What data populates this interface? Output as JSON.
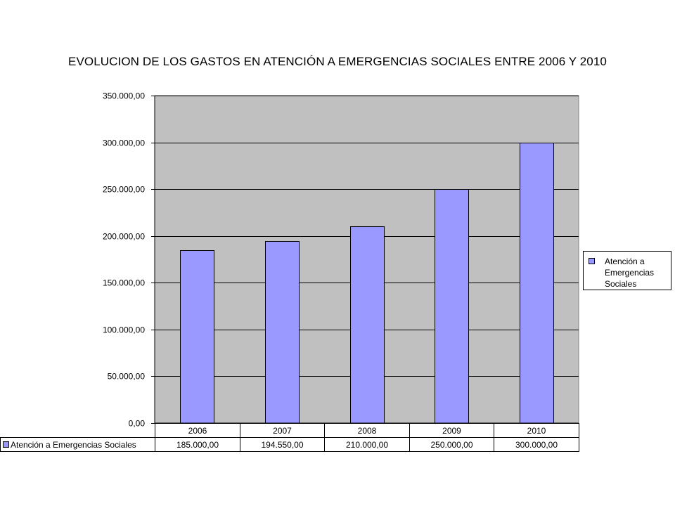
{
  "chart_data": {
    "type": "bar",
    "title": "EVOLUCION DE LOS GASTOS EN ATENCIÓN A EMERGENCIAS SOCIALES ENTRE 2006 Y 2010",
    "categories": [
      "2006",
      "2007",
      "2008",
      "2009",
      "2010"
    ],
    "series": [
      {
        "name": "Atención a Emergencias Sociales",
        "values": [
          185000,
          194550,
          210000,
          250000,
          300000
        ],
        "value_labels": [
          "185.000,00",
          "194.550,00",
          "210.000,00",
          "250.000,00",
          "300.000,00"
        ],
        "color": "#9999ff"
      }
    ],
    "ylim": [
      0,
      350000
    ],
    "yticks": [
      0,
      50000,
      100000,
      150000,
      200000,
      250000,
      300000,
      350000
    ],
    "ytick_labels": [
      "0,00",
      "50.000,00",
      "100.000,00",
      "150.000,00",
      "200.000,00",
      "250.000,00",
      "300.000,00",
      "350.000,00"
    ],
    "xlabel": "",
    "ylabel": "",
    "grid": true,
    "plot_background": "#c0c0c0",
    "legend": {
      "position": "right",
      "entries": [
        "Atención a Emergencias Sociales"
      ],
      "text": "Atención a Emergencias Sociales"
    },
    "data_table": {
      "row_label": "Atención a Emergencias Sociales"
    }
  }
}
